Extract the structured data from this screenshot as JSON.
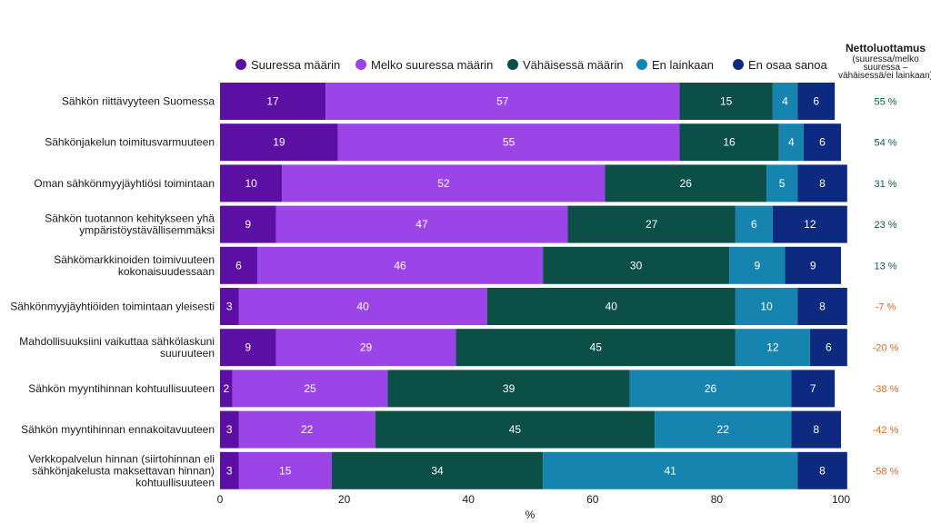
{
  "chart_data": {
    "type": "bar",
    "orientation": "horizontal",
    "stacked": true,
    "xlabel": "%",
    "xlim": [
      0,
      100
    ],
    "xticks": [
      "0",
      "20",
      "40",
      "60",
      "80",
      "100"
    ],
    "legend_position": "top",
    "categories": [
      [
        "Sähkön riittävyyteen Suomessa"
      ],
      [
        "Sähkönjakelun toimitusvarmuuteen"
      ],
      [
        "Oman sähkönmyyjäyhtiösi toimintaan"
      ],
      [
        "Sähkön tuotannon kehitykseen yhä",
        "ympäristöystävällisemmäksi"
      ],
      [
        "Sähkömarkkinoiden toimivuuteen",
        "kokonaisuudessaan"
      ],
      [
        "Sähkönmyyjäyhtiöiden toimintaan yleisesti"
      ],
      [
        "Mahdollisuuksiini vaikuttaa sähkölaskuni",
        "suuruuteen"
      ],
      [
        "Sähkön myyntihinnan kohtuullisuuteen"
      ],
      [
        "Sähkön myyntihinnan ennakoitavuuteen"
      ],
      [
        "Verkkopalvelun hinnan (siirtohinnan eli",
        "sähkönjakelusta maksettavan hinnan)",
        "kohtuullisuuteen"
      ]
    ],
    "series": [
      {
        "name": "Suuressa määrin",
        "color": "#5b0fa3",
        "values": [
          17,
          19,
          10,
          9,
          6,
          3,
          9,
          2,
          3,
          3
        ]
      },
      {
        "name": "Melko suuressa määrin",
        "color": "#9b45e8",
        "values": [
          57,
          55,
          52,
          47,
          46,
          40,
          29,
          25,
          22,
          15
        ]
      },
      {
        "name": "Vähäisessä määrin",
        "color": "#0b4f47",
        "values": [
          15,
          16,
          26,
          27,
          30,
          40,
          45,
          39,
          45,
          34
        ]
      },
      {
        "name": "En lainkaan",
        "color": "#1585b0",
        "values": [
          4,
          4,
          5,
          6,
          9,
          10,
          12,
          26,
          22,
          41
        ]
      },
      {
        "name": "En osaa sanoa",
        "color": "#0d2a80",
        "values": [
          6,
          6,
          8,
          12,
          9,
          8,
          6,
          7,
          8,
          8
        ]
      }
    ],
    "net_trust": {
      "title": "Nettoluottamus",
      "subtitle": [
        "(suuressa/melko",
        "suuressa –",
        "vähäisessä/ei lainkaan)"
      ],
      "values": [
        "55 %",
        "54 %",
        "31 %",
        "23 %",
        "13 %",
        "-7 %",
        "-20 %",
        "-38 %",
        "-42 %",
        "-58 %"
      ],
      "positive_color": "#0b5a52",
      "negative_color": "#e06a1e"
    }
  }
}
